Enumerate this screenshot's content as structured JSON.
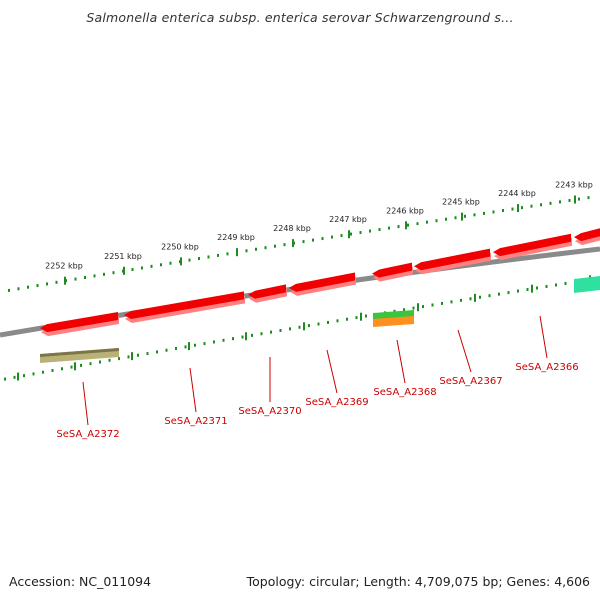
{
  "title": "Salmonella enterica subsp. enterica serovar Schwarzenground s...",
  "footer": {
    "accession": "Accession: NC_011094",
    "summary": "Topology: circular; Length: 4,709,075 bp; Genes: 4,606"
  },
  "colors": {
    "cds": "#f00000",
    "cds_shadow": "#ff8080",
    "backbone": "#8a8a8a",
    "tick": "#1f8a1f",
    "gene_label": "#cc0000",
    "misc_olive": "#b9b276",
    "green_feature": "#3cc43c",
    "orange_feature": "#ff9020",
    "teal_feature": "#30e0a0"
  },
  "ruler_labels": [
    "2252 kbp",
    "2251 kbp",
    "2250 kbp",
    "2249 kbp",
    "2248 kbp",
    "2247 kbp",
    "2246 kbp",
    "2245 kbp",
    "2244 kbp",
    "2243 kbp"
  ],
  "gene_labels": [
    "SeSA_A2372",
    "SeSA_A2371",
    "SeSA_A2370",
    "SeSA_A2369",
    "SeSA_A2368",
    "SeSA_A2367",
    "SeSA_A2366"
  ]
}
